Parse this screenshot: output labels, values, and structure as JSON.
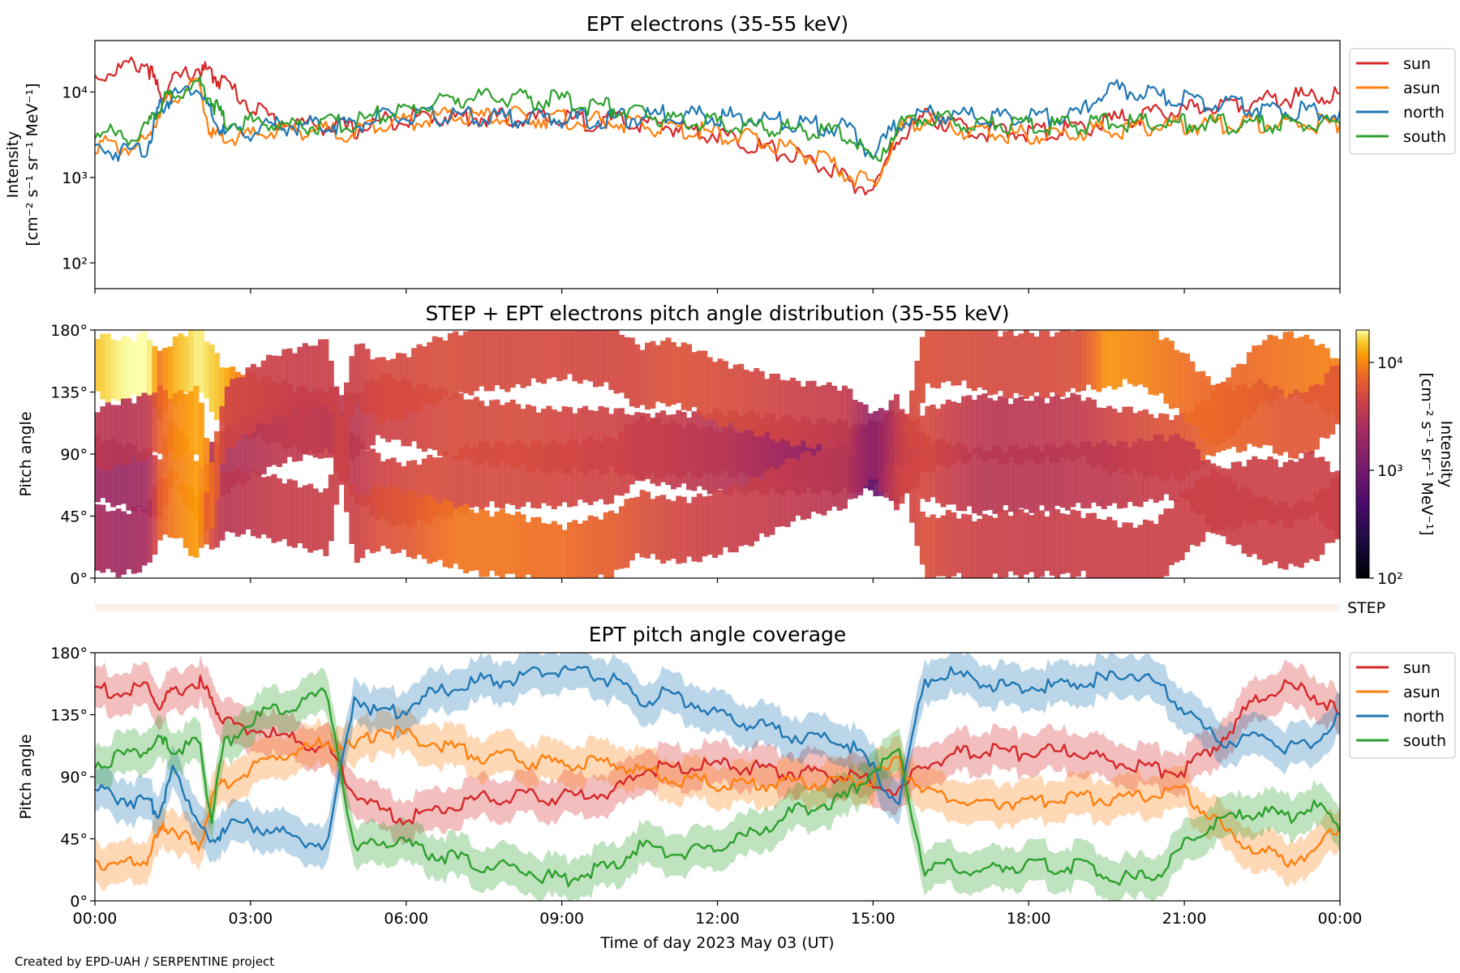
{
  "colors": {
    "sun": "#d62728",
    "asun": "#ff7f0e",
    "north": "#1f77b4",
    "south": "#2ca02c",
    "step_bar": "#fdf0ea"
  },
  "chart_data": [
    {
      "type": "line",
      "title": "EPT electrons (35-55 keV)",
      "ylabel": "Intensity",
      "ylabel_units": "[cm⁻² s⁻¹ sr⁻¹ MeV⁻¹]",
      "yscale": "log",
      "ylim": [
        50,
        40000
      ],
      "yticks": [
        {
          "v": 100,
          "label": "10²"
        },
        {
          "v": 1000,
          "label": "10³"
        },
        {
          "v": 10000,
          "label": "10⁴"
        }
      ],
      "legend": "outside right, top",
      "x_hours": [
        0,
        0.5,
        1,
        1.25,
        1.5,
        2,
        2.25,
        2.5,
        3,
        3.5,
        4,
        4.5,
        5,
        5.5,
        6,
        6.5,
        7,
        7.5,
        8,
        8.5,
        9,
        9.5,
        10,
        10.5,
        11,
        11.5,
        12,
        12.5,
        13,
        13.5,
        14,
        14.5,
        15,
        15.5,
        16,
        16.5,
        17,
        17.5,
        18,
        18.5,
        19,
        19.5,
        20,
        20.5,
        21,
        21.5,
        22,
        22.5,
        23,
        23.5,
        24
      ],
      "series": [
        {
          "name": "sun",
          "values": [
            15000,
            19000,
            22000,
            9000,
            13000,
            19000,
            16000,
            13000,
            7000,
            4500,
            4200,
            4000,
            3500,
            4500,
            5000,
            5200,
            5000,
            5000,
            5000,
            4800,
            4800,
            4500,
            4600,
            4200,
            4000,
            3600,
            3200,
            2600,
            2100,
            1800,
            1400,
            900,
            700,
            3000,
            5200,
            4200,
            3500,
            3300,
            3400,
            3500,
            3700,
            4500,
            5000,
            5500,
            6000,
            7000,
            7500,
            8000,
            8500,
            9000,
            9500
          ]
        },
        {
          "name": "asun",
          "values": [
            2500,
            2200,
            2500,
            6500,
            9000,
            12000,
            3000,
            2800,
            3000,
            3500,
            3600,
            3500,
            3300,
            4500,
            4500,
            5000,
            5200,
            5000,
            5200,
            5000,
            4800,
            4500,
            4500,
            4000,
            3800,
            3500,
            3300,
            2900,
            2500,
            2100,
            1600,
            1100,
            800,
            3500,
            5000,
            4000,
            3300,
            3200,
            3200,
            3200,
            3500,
            3500,
            3800,
            4000,
            4000,
            4200,
            4200,
            4300,
            4200,
            4300,
            4200
          ]
        },
        {
          "name": "north",
          "values": [
            2200,
            2000,
            2300,
            6500,
            9000,
            12000,
            5000,
            3200,
            3500,
            4000,
            4000,
            4200,
            4200,
            5000,
            5000,
            5200,
            5200,
            5000,
            5000,
            5000,
            5000,
            4800,
            4800,
            5000,
            5500,
            5500,
            5200,
            5000,
            4600,
            4300,
            4000,
            3800,
            1800,
            4500,
            5500,
            5200,
            5200,
            5000,
            5000,
            5200,
            5500,
            11000,
            10000,
            9000,
            8000,
            7500,
            7000,
            6500,
            6000,
            6000,
            6000
          ]
        },
        {
          "name": "south",
          "values": [
            3500,
            3000,
            3500,
            7000,
            9500,
            13000,
            8000,
            4500,
            4500,
            4200,
            4000,
            4200,
            4300,
            5500,
            6000,
            7500,
            8500,
            8500,
            8500,
            8000,
            8000,
            7000,
            6500,
            5500,
            5000,
            4500,
            4300,
            4000,
            3800,
            3600,
            3400,
            3200,
            1500,
            4000,
            5500,
            4600,
            4400,
            4200,
            4000,
            4000,
            4200,
            4300,
            4300,
            4300,
            4300,
            4300,
            4200,
            4300,
            4200,
            4300,
            4300
          ]
        }
      ]
    },
    {
      "type": "heatmap",
      "title": "STEP + EPT electrons pitch angle distribution (35-55 keV)",
      "ylabel": "Pitch angle",
      "ylim": [
        0,
        180
      ],
      "yticks": [
        "0°",
        "45°",
        "90°",
        "135°",
        "180°"
      ],
      "colorbar": {
        "label": "Intensity",
        "label_units": "[cm⁻² s⁻¹ sr⁻¹ MeV⁻¹]",
        "scale": "log",
        "range": [
          100,
          20000
        ],
        "ticks": [
          {
            "v": 100,
            "label": "10²"
          },
          {
            "v": 1000,
            "label": "10³"
          },
          {
            "v": 10000,
            "label": "10⁴"
          }
        ]
      }
    },
    {
      "type": "line",
      "title": "EPT pitch angle coverage",
      "ylabel": "Pitch angle",
      "ylim": [
        0,
        180
      ],
      "yticks": [
        "0°",
        "45°",
        "90°",
        "135°",
        "180°"
      ],
      "xlabel": "Time of day 2023 May 03 (UT)",
      "xticks": [
        "00:00",
        "03:00",
        "06:00",
        "09:00",
        "12:00",
        "15:00",
        "18:00",
        "21:00",
        "00:00"
      ],
      "band_halfwidth_deg": 15,
      "legend": "outside right, top",
      "x_hours": [
        0,
        0.5,
        1,
        1.25,
        1.5,
        2,
        2.25,
        2.5,
        3,
        3.5,
        4,
        4.5,
        5,
        5.5,
        6,
        6.5,
        7,
        7.5,
        8,
        8.5,
        9,
        9.5,
        10,
        10.5,
        11,
        11.5,
        12,
        12.5,
        13,
        13.5,
        14,
        14.5,
        15,
        15.5,
        16,
        16.5,
        17,
        17.5,
        18,
        18.5,
        19,
        19.5,
        20,
        20.5,
        21,
        21.5,
        22,
        22.5,
        23,
        23.5,
        24
      ],
      "series": [
        {
          "name": "sun",
          "values": [
            155,
            150,
            155,
            140,
            150,
            160,
            145,
            130,
            125,
            120,
            115,
            110,
            80,
            65,
            60,
            65,
            70,
            75,
            75,
            75,
            75,
            78,
            78,
            95,
            97,
            97,
            98,
            97,
            95,
            93,
            92,
            90,
            85,
            78,
            100,
            105,
            110,
            107,
            107,
            108,
            110,
            100,
            100,
            95,
            95,
            110,
            130,
            150,
            155,
            150,
            135
          ]
        },
        {
          "name": "asun",
          "values": [
            30,
            25,
            30,
            50,
            55,
            35,
            75,
            85,
            95,
            105,
            110,
            115,
            110,
            125,
            120,
            115,
            110,
            105,
            105,
            100,
            100,
            100,
            100,
            95,
            90,
            88,
            85,
            85,
            85,
            85,
            85,
            85,
            90,
            100,
            80,
            75,
            70,
            72,
            72,
            73,
            75,
            75,
            75,
            80,
            80,
            60,
            45,
            35,
            30,
            35,
            55
          ]
        },
        {
          "name": "north",
          "values": [
            80,
            75,
            70,
            65,
            95,
            60,
            40,
            55,
            55,
            50,
            45,
            40,
            150,
            135,
            140,
            150,
            155,
            160,
            160,
            165,
            168,
            165,
            160,
            145,
            150,
            145,
            135,
            130,
            125,
            120,
            118,
            115,
            95,
            70,
            160,
            165,
            160,
            155,
            155,
            155,
            160,
            160,
            165,
            155,
            140,
            120,
            115,
            120,
            110,
            115,
            135
          ]
        },
        {
          "name": "south",
          "values": [
            100,
            105,
            110,
            115,
            110,
            115,
            60,
            115,
            130,
            140,
            145,
            150,
            35,
            45,
            40,
            35,
            30,
            25,
            25,
            20,
            15,
            20,
            25,
            40,
            35,
            35,
            40,
            45,
            55,
            65,
            70,
            75,
            95,
            110,
            20,
            25,
            20,
            25,
            25,
            25,
            25,
            20,
            15,
            20,
            40,
            55,
            60,
            65,
            60,
            70,
            50
          ]
        }
      ]
    }
  ],
  "legend_labels": [
    "sun",
    "asun",
    "north",
    "south"
  ],
  "step_label": "STEP",
  "footer": "Created by EPD-UAH / SERPENTINE project"
}
